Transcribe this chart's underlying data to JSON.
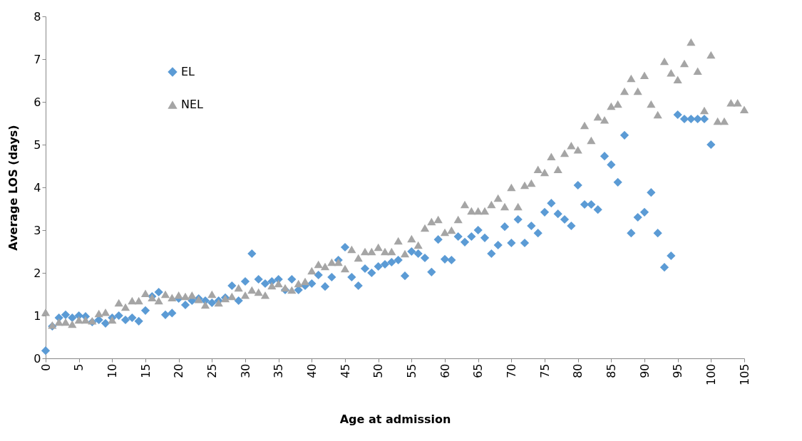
{
  "chart_data": {
    "type": "scatter",
    "xlabel": "Age at admission",
    "ylabel": "Average LOS (days)",
    "xlim": [
      0,
      105
    ],
    "ylim": [
      0,
      8
    ],
    "xticks": [
      0,
      5,
      10,
      15,
      20,
      25,
      30,
      35,
      40,
      45,
      50,
      55,
      60,
      65,
      70,
      75,
      80,
      85,
      90,
      95,
      100,
      105
    ],
    "yticks": [
      0,
      1,
      2,
      3,
      4,
      5,
      6,
      7,
      8
    ],
    "grid": false,
    "legend": "top left",
    "series": [
      {
        "name": "EL",
        "color": "#5b9bd5",
        "marker": "diamond",
        "x": [
          0,
          1,
          2,
          3,
          4,
          5,
          6,
          7,
          8,
          9,
          10,
          11,
          12,
          13,
          14,
          15,
          16,
          17,
          18,
          19,
          20,
          21,
          22,
          23,
          24,
          25,
          26,
          27,
          28,
          29,
          30,
          31,
          32,
          33,
          34,
          35,
          36,
          37,
          38,
          39,
          40,
          41,
          42,
          43,
          44,
          45,
          46,
          47,
          48,
          49,
          50,
          51,
          52,
          53,
          54,
          55,
          56,
          57,
          58,
          59,
          60,
          61,
          62,
          63,
          64,
          65,
          66,
          67,
          68,
          69,
          70,
          71,
          72,
          73,
          74,
          75,
          76,
          77,
          78,
          79,
          80,
          81,
          82,
          83,
          84,
          85,
          86,
          87,
          88,
          89,
          90,
          91,
          92,
          93,
          94,
          95,
          96,
          97,
          98,
          99,
          100
        ],
        "values": [
          0.18,
          0.75,
          0.95,
          1.02,
          0.95,
          1.0,
          0.98,
          0.85,
          0.9,
          0.82,
          0.95,
          1.0,
          0.9,
          0.95,
          0.87,
          1.12,
          1.45,
          1.55,
          1.02,
          1.06,
          1.4,
          1.25,
          1.35,
          1.4,
          1.35,
          1.3,
          1.35,
          1.42,
          1.7,
          1.35,
          1.8,
          2.45,
          1.85,
          1.75,
          1.8,
          1.85,
          1.6,
          1.85,
          1.6,
          1.7,
          1.75,
          1.95,
          1.68,
          1.9,
          2.3,
          2.6,
          1.9,
          1.7,
          2.1,
          2.0,
          2.15,
          2.2,
          2.25,
          2.3,
          1.93,
          2.5,
          2.45,
          2.35,
          2.02,
          2.78,
          2.32,
          2.3,
          2.85,
          2.72,
          2.85,
          3.0,
          2.82,
          2.45,
          2.65,
          3.08,
          2.7,
          3.25,
          2.7,
          3.1,
          2.93,
          3.42,
          3.63,
          3.38,
          3.25,
          3.1,
          4.05,
          3.6,
          3.6,
          3.48,
          4.73,
          4.53,
          4.12,
          5.22,
          2.93,
          3.3,
          3.42,
          3.88,
          2.93,
          2.13,
          2.4,
          5.7,
          5.6,
          5.6,
          5.6,
          5.6,
          5.0
        ]
      },
      {
        "name": "NEL",
        "color": "#a5a5a5",
        "marker": "triangle",
        "x": [
          0,
          1,
          2,
          3,
          4,
          5,
          6,
          7,
          8,
          9,
          10,
          11,
          12,
          13,
          14,
          15,
          16,
          17,
          18,
          19,
          20,
          21,
          22,
          23,
          24,
          25,
          26,
          27,
          28,
          29,
          30,
          31,
          32,
          33,
          34,
          35,
          36,
          37,
          38,
          39,
          40,
          41,
          42,
          43,
          44,
          45,
          46,
          47,
          48,
          49,
          50,
          51,
          52,
          53,
          54,
          55,
          56,
          57,
          58,
          59,
          60,
          61,
          62,
          63,
          64,
          65,
          66,
          67,
          68,
          69,
          70,
          71,
          72,
          73,
          74,
          75,
          76,
          77,
          78,
          79,
          80,
          81,
          82,
          83,
          84,
          85,
          86,
          87,
          88,
          89,
          90,
          91,
          92,
          93,
          94,
          95,
          96,
          97,
          98,
          99,
          100,
          101,
          102,
          103,
          104,
          105
        ],
        "values": [
          1.08,
          0.78,
          0.85,
          0.85,
          0.8,
          0.9,
          0.9,
          0.88,
          1.05,
          1.08,
          0.9,
          1.3,
          1.2,
          1.35,
          1.35,
          1.52,
          1.42,
          1.35,
          1.5,
          1.42,
          1.48,
          1.45,
          1.48,
          1.38,
          1.25,
          1.5,
          1.3,
          1.4,
          1.45,
          1.65,
          1.48,
          1.6,
          1.55,
          1.48,
          1.7,
          1.75,
          1.65,
          1.6,
          1.75,
          1.8,
          2.05,
          2.2,
          2.15,
          2.25,
          2.25,
          2.1,
          2.55,
          2.35,
          2.5,
          2.5,
          2.6,
          2.5,
          2.5,
          2.75,
          2.45,
          2.8,
          2.65,
          3.05,
          3.2,
          3.25,
          2.95,
          3.0,
          3.25,
          3.6,
          3.45,
          3.45,
          3.45,
          3.6,
          3.75,
          3.55,
          4.0,
          3.55,
          4.05,
          4.1,
          4.42,
          4.35,
          4.72,
          4.42,
          4.8,
          4.98,
          4.88,
          5.45,
          5.1,
          5.65,
          5.58,
          5.9,
          5.95,
          6.25,
          6.55,
          6.25,
          6.62,
          5.95,
          5.7,
          6.95,
          6.68,
          6.52,
          6.9,
          7.4,
          6.72,
          5.8,
          7.1,
          5.55,
          5.55,
          5.98,
          5.98,
          5.82
        ]
      }
    ]
  }
}
